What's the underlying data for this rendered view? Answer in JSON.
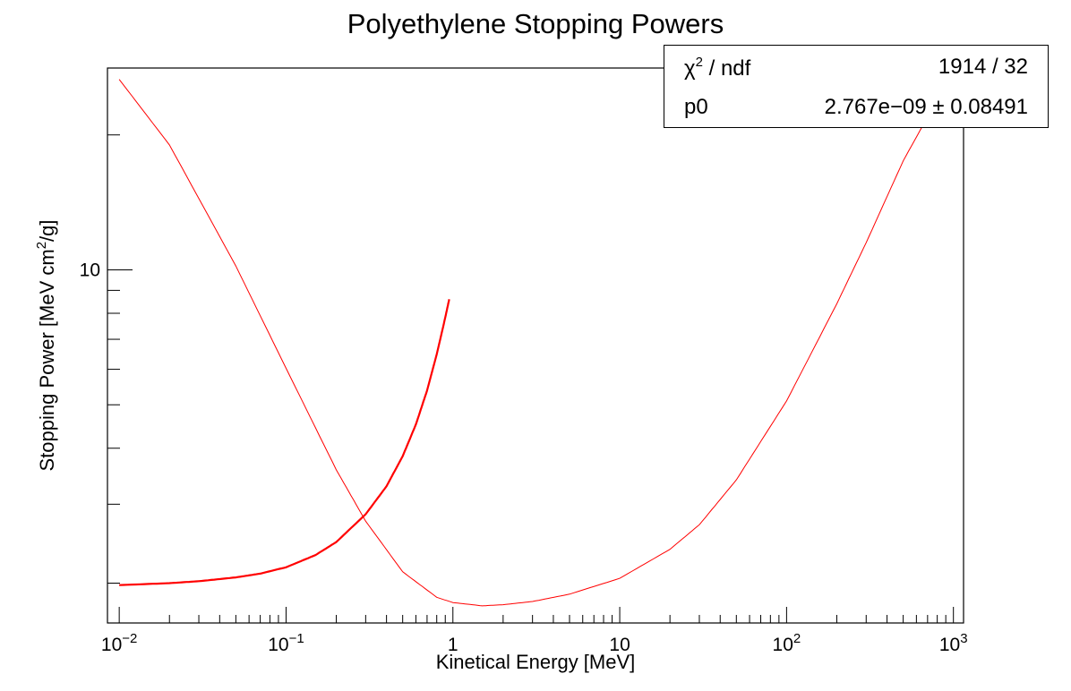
{
  "chart_data": {
    "type": "line",
    "title": "Polyethylene Stopping Powers",
    "xlabel": "Kinetical Energy [MeV]",
    "ylabel": "Stopping Power [MeV cm2/g]",
    "x_scale": "log",
    "y_scale": "log",
    "xlim": [
      0.0085,
      1150
    ],
    "ylim": [
      1.63,
      28.2
    ],
    "x_ticks": [
      "10^-2",
      "10^-1",
      "1",
      "10",
      "10^2",
      "10^3"
    ],
    "y_ticks": [
      "10"
    ],
    "grid": false,
    "series": [
      {
        "color": "#ff0000",
        "style": "thin",
        "x": [
          0.01,
          0.02,
          0.05,
          0.1,
          0.2,
          0.3,
          0.5,
          0.8,
          1,
          1.5,
          2,
          3,
          5,
          10,
          20,
          30,
          50,
          100,
          200,
          300,
          500,
          800
        ],
        "y": [
          26.6,
          19.0,
          10.2,
          6.03,
          3.58,
          2.75,
          2.12,
          1.86,
          1.81,
          1.78,
          1.79,
          1.82,
          1.89,
          2.05,
          2.38,
          2.7,
          3.4,
          5.1,
          8.4,
          11.5,
          17.5,
          24.0
        ]
      },
      {
        "color": "#ff0000",
        "style": "thick",
        "x": [
          0.01,
          0.02,
          0.03,
          0.05,
          0.07,
          0.1,
          0.15,
          0.2,
          0.3,
          0.4,
          0.5,
          0.6,
          0.7,
          0.8,
          0.9,
          0.95
        ],
        "y": [
          1.98,
          2.0,
          2.02,
          2.06,
          2.1,
          2.17,
          2.31,
          2.47,
          2.85,
          3.29,
          3.84,
          4.52,
          5.38,
          6.48,
          7.83,
          8.6
        ]
      }
    ],
    "legend": "top-right"
  },
  "stats_box": {
    "row1_label_main": "χ",
    "row1_label_sup": "2",
    "row1_label_rest": " / ndf",
    "row1_value": "1914 / 32",
    "row2_label": "p0",
    "row2_value": "2.767e−09 ± 0.08491"
  }
}
